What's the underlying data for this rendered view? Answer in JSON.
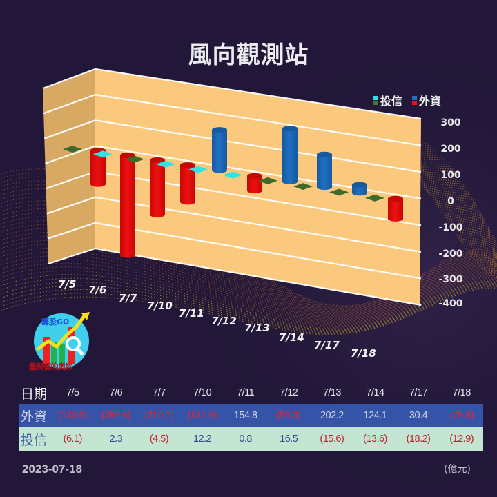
{
  "title": "風向觀測站",
  "legend": {
    "items": [
      {
        "label": "投信",
        "colors": [
          "#2fe2e8",
          "#3f7a2e"
        ]
      },
      {
        "label": "外資",
        "colors": [
          "#1f6fc4",
          "#f01010"
        ]
      }
    ]
  },
  "colors": {
    "background": "#221738",
    "wall": "#fbc97d",
    "side_wall": "#d8a963",
    "foreign_positive": "#1f6fc4",
    "foreign_negative": "#f01010",
    "trust_positive": "#2fe2e8",
    "trust_negative": "#3f6a2a",
    "table_foreign_row": "#3554a8",
    "table_trust_row": "#c5e5d3"
  },
  "chart_data": {
    "type": "bar",
    "title": "風向觀測站",
    "categories": [
      "7/5",
      "7/6",
      "7/7",
      "7/10",
      "7/11",
      "7/12",
      "7/13",
      "7/14",
      "7/17",
      "7/18"
    ],
    "series": [
      {
        "name": "外資",
        "values": [
          -130.9,
          -387.5,
          -210.7,
          -141.9,
          154.8,
          -56.3,
          202.2,
          124.1,
          30.4,
          -75.8
        ]
      },
      {
        "name": "投信",
        "values": [
          -6.1,
          2.3,
          -4.5,
          12.2,
          0.8,
          16.5,
          -15.6,
          -13.6,
          -18.2,
          -12.9
        ]
      }
    ],
    "xlabel": "日期",
    "ylabel": "億元",
    "ylim": [
      -400,
      300
    ],
    "yticks": [
      "300",
      "200",
      "100",
      "0",
      "-100",
      "-200",
      "-300",
      "-400"
    ],
    "grid": true,
    "legend_position": "top-right",
    "style": "3d-cylinder"
  },
  "table": {
    "header_label": "日期",
    "dates": [
      "7/5",
      "7/6",
      "7/7",
      "7/10",
      "7/11",
      "7/12",
      "7/13",
      "7/14",
      "7/17",
      "7/18"
    ],
    "rows": [
      {
        "label": "外資",
        "values": [
          "(130.9)",
          "(387.5)",
          "(210.7)",
          "(141.9)",
          "154.8",
          "(56.3)",
          "202.2",
          "124.1",
          "30.4",
          "(75.8)"
        ]
      },
      {
        "label": "投信",
        "values": [
          "(6.1)",
          "2.3",
          "(4.5)",
          "12.2",
          "0.8",
          "16.5",
          "(15.6)",
          "(13.6)",
          "(18.2)",
          "(12.9)"
        ]
      }
    ]
  },
  "logo": {
    "label": "籌股GO",
    "subtitle": "量與價的奧妙",
    "icon": "magnifier-chart-icon"
  },
  "footer": {
    "date": "2023-07-18",
    "unit": "(億元)"
  }
}
